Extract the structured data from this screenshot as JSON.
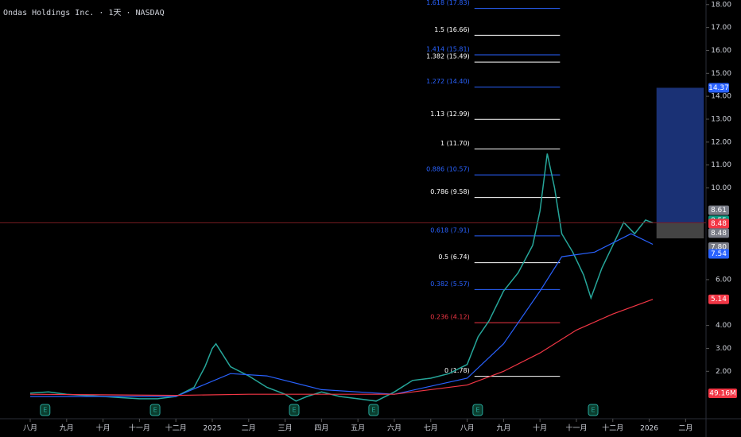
{
  "chart_data": {
    "type": "line",
    "title": "Ondas Holdings Inc. · 1天 · NASDAQ",
    "xlim": [
      -0.83,
      18.56
    ],
    "ylim": [
      0,
      18.2
    ],
    "xticks": [
      {
        "value": 0,
        "label": "八月"
      },
      {
        "value": 1,
        "label": "九月"
      },
      {
        "value": 2,
        "label": "十月"
      },
      {
        "value": 3,
        "label": "十一月"
      },
      {
        "value": 4,
        "label": "十二月"
      },
      {
        "value": 5,
        "label": "2025"
      },
      {
        "value": 6,
        "label": "二月"
      },
      {
        "value": 7,
        "label": "三月"
      },
      {
        "value": 8,
        "label": "四月"
      },
      {
        "value": 9,
        "label": "五月"
      },
      {
        "value": 10,
        "label": "六月"
      },
      {
        "value": 11,
        "label": "七月"
      },
      {
        "value": 12,
        "label": "八月"
      },
      {
        "value": 13,
        "label": "九月"
      },
      {
        "value": 14,
        "label": "十月"
      },
      {
        "value": 15,
        "label": "十一月"
      },
      {
        "value": 16,
        "label": "十二月"
      },
      {
        "value": 17,
        "label": "2026"
      },
      {
        "value": 18,
        "label": "二月"
      }
    ],
    "yticks": [
      {
        "value": 2,
        "label": "2.00"
      },
      {
        "value": 3,
        "label": "3.00"
      },
      {
        "value": 4,
        "label": "4.00"
      },
      {
        "value": 6,
        "label": "6.00"
      },
      {
        "value": 10,
        "label": "10.00"
      },
      {
        "value": 11,
        "label": "11.00"
      },
      {
        "value": 12,
        "label": "12.00"
      },
      {
        "value": 13,
        "label": "13.00"
      },
      {
        "value": 14,
        "label": "14.00"
      },
      {
        "value": 15,
        "label": "15.00"
      },
      {
        "value": 16,
        "label": "16.00"
      },
      {
        "value": 17,
        "label": "17.00"
      },
      {
        "value": 18,
        "label": "18.00"
      }
    ],
    "series": [
      {
        "color": "#26a69a",
        "x": [
          0,
          0.5,
          1,
          1.5,
          2,
          2.5,
          3,
          3.5,
          4,
          4.5,
          4.8,
          5,
          5.1,
          5.5,
          6,
          6.5,
          7,
          7.3,
          7.6,
          8,
          8.5,
          9,
          9.5,
          10,
          10.5,
          11,
          11.5,
          12,
          12.3,
          12.6,
          13,
          13.4,
          13.8,
          14,
          14.2,
          14.4,
          14.6,
          14.9,
          15.2,
          15.4,
          15.7,
          16,
          16.3,
          16.6,
          16.9,
          17.1
        ],
        "values": [
          1.05,
          1.1,
          1.0,
          0.95,
          0.9,
          0.85,
          0.8,
          0.8,
          0.9,
          1.3,
          2.2,
          3.0,
          3.2,
          2.2,
          1.8,
          1.3,
          1.0,
          0.7,
          0.9,
          1.1,
          0.9,
          0.8,
          0.7,
          1.1,
          1.6,
          1.7,
          1.9,
          2.3,
          3.5,
          4.2,
          5.5,
          6.3,
          7.5,
          9.0,
          11.5,
          10.0,
          8.0,
          7.2,
          6.2,
          5.2,
          6.5,
          7.5,
          8.5,
          8.0,
          8.6,
          8.48
        ]
      },
      {
        "color": "#2962ff",
        "x": [
          0,
          4,
          5.5,
          6.5,
          8,
          10,
          12,
          13,
          14,
          14.6,
          15.5,
          16.5,
          17.1
        ],
        "values": [
          0.9,
          0.9,
          1.9,
          1.8,
          1.2,
          1.0,
          1.7,
          3.2,
          5.5,
          7.0,
          7.2,
          8.0,
          7.54
        ]
      },
      {
        "color": "#f23645",
        "x": [
          0,
          4,
          6,
          8,
          10,
          12,
          13,
          14,
          15,
          16,
          17.1
        ],
        "values": [
          1.0,
          0.95,
          1.0,
          1.0,
          1.0,
          1.4,
          2.0,
          2.8,
          3.8,
          4.5,
          5.14
        ]
      }
    ],
    "fib_x": [
      12.2,
      14.55
    ],
    "fib_levels": [
      {
        "label": "0 (1.78)",
        "value": 1.78,
        "color": "#ffffff"
      },
      {
        "label": "0.236 (4.12)",
        "value": 4.12,
        "color": "#f23645"
      },
      {
        "label": "0.382 (5.57)",
        "value": 5.57,
        "color": "#2962ff"
      },
      {
        "label": "0.5 (6.74)",
        "value": 6.74,
        "color": "#ffffff"
      },
      {
        "label": "0.618 (7.91)",
        "value": 7.91,
        "color": "#2962ff"
      },
      {
        "label": "0.786 (9.58)",
        "value": 9.58,
        "color": "#ffffff"
      },
      {
        "label": "0.886 (10.57)",
        "value": 10.57,
        "color": "#2962ff"
      },
      {
        "label": "1 (11.70)",
        "value": 11.7,
        "color": "#ffffff"
      },
      {
        "label": "1.13 (12.99)",
        "value": 12.99,
        "color": "#ffffff"
      },
      {
        "label": "1.272 (14.40)",
        "value": 14.4,
        "color": "#2962ff"
      },
      {
        "label": "1.382 (15.49)",
        "value": 15.49,
        "color": "#ffffff"
      },
      {
        "label": "1.414 (15.81)",
        "value": 15.81,
        "color": "#2962ff"
      },
      {
        "label": "1.5 (16.66)",
        "value": 16.66,
        "color": "#ffffff"
      },
      {
        "label": "1.618 (17.83)",
        "value": 17.83,
        "color": "#2962ff"
      }
    ],
    "position_box": {
      "x": [
        17.2,
        18.5
      ],
      "target": 14.37,
      "entry": 8.48,
      "stop": 7.8
    },
    "price_labels": [
      {
        "value": 14.37,
        "label": "14.37",
        "color": "#2962ff"
      },
      {
        "value": 8.61,
        "label": "8.61",
        "color": "#787b86"
      },
      {
        "value": 8.55,
        "label": "8.55",
        "color": "#089981"
      },
      {
        "value": 8.48,
        "label": "8.48",
        "color": "#f23645"
      },
      {
        "value": 8.48,
        "label": "8.48",
        "color": "#787b86"
      },
      {
        "value": 7.8,
        "label": "7.80",
        "color": "#787b86"
      },
      {
        "value": 7.54,
        "label": "7.54",
        "color": "#2962ff"
      },
      {
        "value": 5.14,
        "label": "5.14",
        "color": "#f23645"
      }
    ],
    "volume_label": {
      "label": "49.16M",
      "color": "#f23645"
    },
    "earnings": {
      "label": "E",
      "x": [
        0.41,
        3.43,
        7.25,
        9.43,
        12.29,
        15.46
      ]
    }
  }
}
